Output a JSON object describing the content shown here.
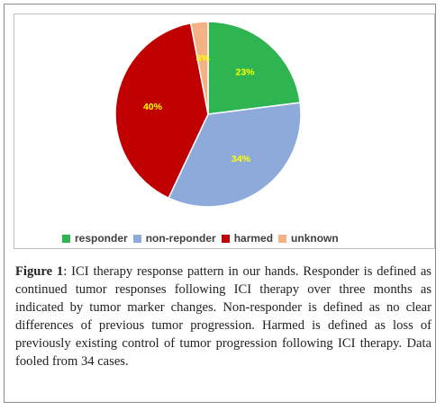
{
  "chart_data": {
    "type": "pie",
    "categories": [
      "responder",
      "non-reponder",
      "harmed",
      "unknown"
    ],
    "values": [
      23,
      34,
      40,
      3
    ],
    "labels": [
      "23%",
      "34%",
      "40%",
      "3%"
    ],
    "colors": [
      "#2eb551",
      "#8eaadb",
      "#c00000",
      "#f4b183"
    ],
    "label_colors": [
      "#ffff00",
      "#ffff00",
      "#ffff00",
      "#ffff00"
    ],
    "legend_position": "bottom"
  },
  "caption": {
    "figure_label": "Figure 1",
    "text": ": ICI therapy response pattern in our hands. Responder is defined as continued tumor responses following ICI therapy over three months as indicated by tumor marker changes. Non-responder is defined as no clear differences of previous tumor progression. Harmed is defined as loss of previously existing control of tumor progression following ICI therapy. Data fooled from 34 cases."
  }
}
